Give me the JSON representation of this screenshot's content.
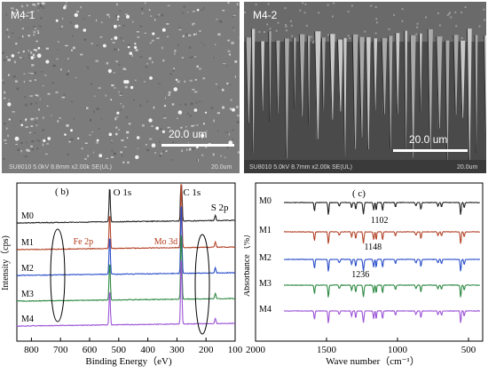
{
  "sem_panels": [
    {
      "label": "M4-1",
      "scale": "20.0 um",
      "info": "SU8010 5.0kV 8.8mm x2.00k SE(UL)",
      "info_scale": "20.0um"
    },
    {
      "label": "M4-2",
      "scale": "20.0 um",
      "info": "SU8010 5.0kV 8.7mm x2.00k SE(UL)",
      "info_scale": "20.0um"
    }
  ],
  "colors": {
    "M0": "#222222",
    "M1": "#b4452a",
    "M2": "#2b4fc9",
    "M3": "#2f8a44",
    "M4": "#9b55d6",
    "annotation": "#b43a1a"
  },
  "chart_data": [
    {
      "type": "line",
      "panel_label": "( b)",
      "xlabel": "Binding Energy（eV)",
      "ylabel": "Intensity（cps)",
      "xlim": [
        850,
        100
      ],
      "x_ticks": [
        800,
        700,
        600,
        500,
        400,
        300,
        200,
        100
      ],
      "series_labels": [
        "M0",
        "M1",
        "M2",
        "M3",
        "M4"
      ],
      "peaks": [
        {
          "label": "O 1s",
          "x": 531
        },
        {
          "label": "C 1s",
          "x": 285
        },
        {
          "label": "S 2p",
          "x": 168
        },
        {
          "label": "Fe 2p",
          "x": 711
        },
        {
          "label": "Mo 3d",
          "x": 232
        }
      ],
      "series": [
        {
          "name": "M0",
          "offset": 4,
          "o1s": 1.0,
          "c1s": 1.9,
          "s2p": 0.5
        },
        {
          "name": "M1",
          "offset": 3,
          "o1s": 1.0,
          "c1s": 2.0,
          "s2p": 0.5
        },
        {
          "name": "M2",
          "offset": 2,
          "o1s": 1.1,
          "c1s": 2.1,
          "s2p": 0.5
        },
        {
          "name": "M3",
          "offset": 1,
          "o1s": 1.1,
          "c1s": 2.0,
          "s2p": 0.5
        },
        {
          "name": "M4",
          "offset": 0,
          "o1s": 1.0,
          "c1s": 2.0,
          "s2p": 0.5
        }
      ]
    },
    {
      "type": "line",
      "panel_label": "( c)",
      "xlabel": "Wave number（cm⁻¹）",
      "ylabel": "Absorbance（%）",
      "xlim": [
        2000,
        400
      ],
      "x_ticks": [
        2000,
        1500,
        1000,
        500
      ],
      "series_labels": [
        "M0",
        "M1",
        "M2",
        "M3",
        "M4"
      ],
      "annotations": [
        {
          "label": "1102",
          "x": 1102,
          "series": "M1"
        },
        {
          "label": "1148",
          "x": 1148,
          "series": "M2"
        },
        {
          "label": "1236",
          "x": 1236,
          "series": "M3"
        }
      ],
      "series": [
        {
          "name": "M0",
          "offset": 4
        },
        {
          "name": "M1",
          "offset": 3
        },
        {
          "name": "M2",
          "offset": 2
        },
        {
          "name": "M3",
          "offset": 1
        },
        {
          "name": "M4",
          "offset": 0
        }
      ]
    }
  ]
}
